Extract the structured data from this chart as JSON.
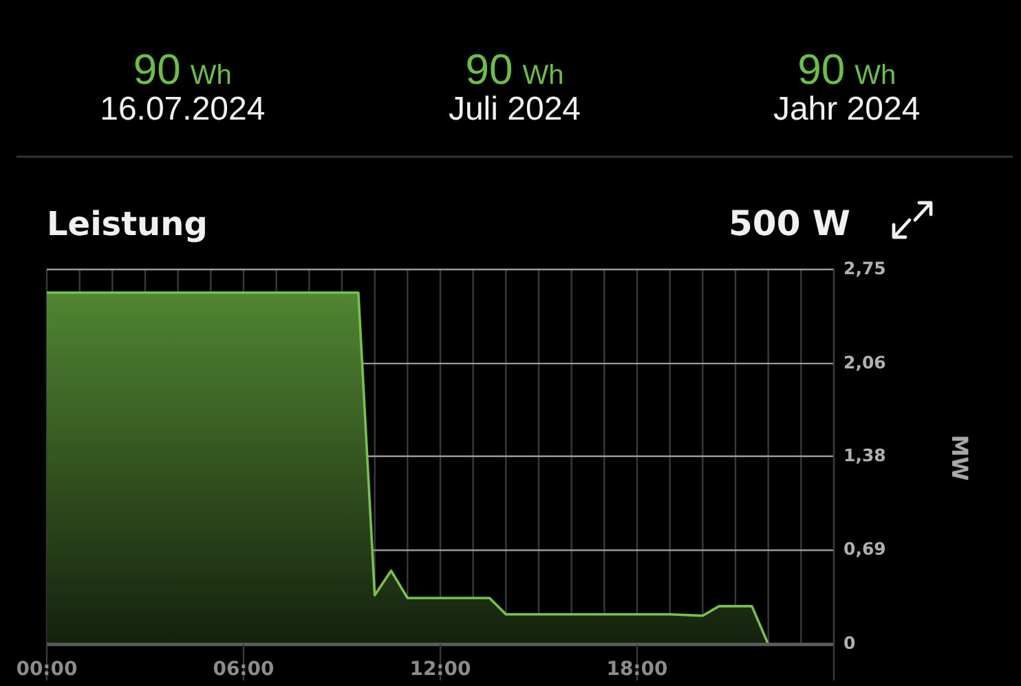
{
  "chart_data": {
    "type": "area",
    "title": "Leistung",
    "subtitle": "500 W",
    "annotations": [
      "90 Wh",
      "16.07.2024",
      "90 Wh",
      "Juli 2024",
      "90 Wh",
      "Jahr 2024"
    ],
    "ylabel": "MW",
    "x": [
      0,
      9.5,
      10,
      10.5,
      11,
      13.5,
      14,
      19,
      20,
      20.5,
      21.5,
      22,
      24
    ],
    "series": [
      {
        "color": "#76c24a",
        "values": [
          2.58,
          2.58,
          0.36,
          0.54,
          0.34,
          0.34,
          0.22,
          0.22,
          0.21,
          0.28,
          0.28,
          0,
          0
        ]
      }
    ],
    "xlim": [
      0,
      24
    ],
    "xticks": [
      {
        "value": 0,
        "label": "00:00"
      },
      {
        "value": 1,
        "label": null
      },
      {
        "value": 2,
        "label": null
      },
      {
        "value": 3,
        "label": null
      },
      {
        "value": 4,
        "label": null
      },
      {
        "value": 5,
        "label": null
      },
      {
        "value": 6,
        "label": "06:00"
      },
      {
        "value": 7,
        "label": null
      },
      {
        "value": 8,
        "label": null
      },
      {
        "value": 9,
        "label": null
      },
      {
        "value": 10,
        "label": null
      },
      {
        "value": 11,
        "label": null
      },
      {
        "value": 12,
        "label": "12:00"
      },
      {
        "value": 13,
        "label": null
      },
      {
        "value": 14,
        "label": null
      },
      {
        "value": 15,
        "label": null
      },
      {
        "value": 16,
        "label": null
      },
      {
        "value": 17,
        "label": null
      },
      {
        "value": 18,
        "label": "18:00"
      },
      {
        "value": 19,
        "label": null
      },
      {
        "value": 20,
        "label": null
      },
      {
        "value": 21,
        "label": null
      },
      {
        "value": 22,
        "label": null
      },
      {
        "value": 23,
        "label": null
      },
      {
        "value": 24,
        "label": null
      }
    ],
    "ylim": [
      0,
      2.75
    ],
    "yticks": [
      0,
      {
        "value": 0.69,
        "label": "0,69"
      },
      {
        "value": 1.38,
        "label": "1,38"
      },
      {
        "value": 2.06,
        "label": "2,06"
      },
      {
        "value": 2.75,
        "label": "2,75"
      }
    ],
    "grid": true
  }
}
